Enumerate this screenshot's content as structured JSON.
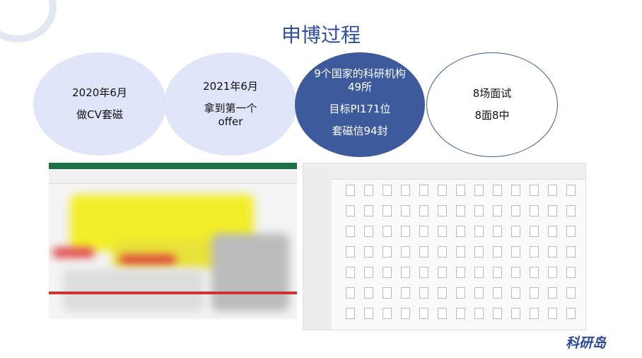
{
  "title": "申博过程",
  "circles": [
    {
      "line1": "2020年6月",
      "line2": "做CV套磁"
    },
    {
      "line1": "2021年6月",
      "line2": "拿到第一个offer"
    },
    {
      "line1": "9个国家的科研机构49所",
      "line2": "目标PI171位",
      "line3": "套磁信94封"
    },
    {
      "line1": "8场面试",
      "line2": "8面8中"
    }
  ],
  "logo": "科研岛",
  "colors": {
    "accent": "#3d5a9c",
    "light": "#dce1f8",
    "title": "#2f4f9f"
  }
}
